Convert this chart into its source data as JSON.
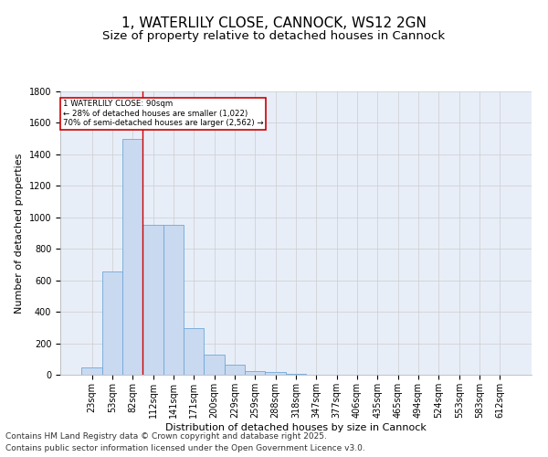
{
  "title_line1": "1, WATERLILY CLOSE, CANNOCK, WS12 2GN",
  "title_line2": "Size of property relative to detached houses in Cannock",
  "xlabel": "Distribution of detached houses by size in Cannock",
  "ylabel": "Number of detached properties",
  "categories": [
    "23sqm",
    "53sqm",
    "82sqm",
    "112sqm",
    "141sqm",
    "171sqm",
    "200sqm",
    "229sqm",
    "259sqm",
    "288sqm",
    "318sqm",
    "347sqm",
    "377sqm",
    "406sqm",
    "435sqm",
    "465sqm",
    "494sqm",
    "524sqm",
    "553sqm",
    "583sqm",
    "612sqm"
  ],
  "values": [
    45,
    655,
    1500,
    950,
    950,
    295,
    130,
    65,
    25,
    18,
    5,
    0,
    0,
    0,
    0,
    0,
    0,
    0,
    0,
    0,
    0
  ],
  "bar_color": "#c9d9f0",
  "bar_edge_color": "#6fa8d8",
  "vline_x_index": 2,
  "vline_color": "#cc0000",
  "annotation_box_text": "1 WATERLILY CLOSE: 90sqm\n← 28% of detached houses are smaller (1,022)\n70% of semi-detached houses are larger (2,562) →",
  "annotation_box_color": "#cc0000",
  "ylim": [
    0,
    1800
  ],
  "yticks": [
    0,
    200,
    400,
    600,
    800,
    1000,
    1200,
    1400,
    1600,
    1800
  ],
  "grid_color": "#cccccc",
  "bg_color": "#e8eef8",
  "footer_line1": "Contains HM Land Registry data © Crown copyright and database right 2025.",
  "footer_line2": "Contains public sector information licensed under the Open Government Licence v3.0.",
  "title_fontsize": 11,
  "subtitle_fontsize": 9.5,
  "axis_label_fontsize": 8,
  "tick_fontsize": 7,
  "footer_fontsize": 6.5
}
